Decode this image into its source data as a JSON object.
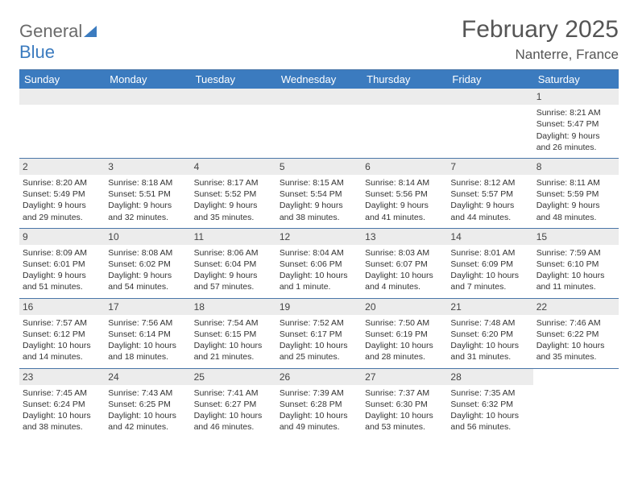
{
  "logo": {
    "word1": "General",
    "word2": "Blue"
  },
  "title": "February 2025",
  "location": "Nanterre, France",
  "colors": {
    "header_bg": "#3b7bbf",
    "header_text": "#ffffff",
    "daynum_bg": "#ececec",
    "rule": "#4a76a8",
    "logo_gray": "#6a6a6a",
    "logo_blue": "#3b7bbf",
    "text": "#333333",
    "title_text": "#555555"
  },
  "dayNames": [
    "Sunday",
    "Monday",
    "Tuesday",
    "Wednesday",
    "Thursday",
    "Friday",
    "Saturday"
  ],
  "weeks": [
    [
      {
        "empty": true
      },
      {
        "empty": true
      },
      {
        "empty": true
      },
      {
        "empty": true
      },
      {
        "empty": true
      },
      {
        "empty": true
      },
      {
        "day": "1",
        "sunrise": "8:21 AM",
        "sunset": "5:47 PM",
        "daylight": "9 hours and 26 minutes."
      }
    ],
    [
      {
        "day": "2",
        "sunrise": "8:20 AM",
        "sunset": "5:49 PM",
        "daylight": "9 hours and 29 minutes."
      },
      {
        "day": "3",
        "sunrise": "8:18 AM",
        "sunset": "5:51 PM",
        "daylight": "9 hours and 32 minutes."
      },
      {
        "day": "4",
        "sunrise": "8:17 AM",
        "sunset": "5:52 PM",
        "daylight": "9 hours and 35 minutes."
      },
      {
        "day": "5",
        "sunrise": "8:15 AM",
        "sunset": "5:54 PM",
        "daylight": "9 hours and 38 minutes."
      },
      {
        "day": "6",
        "sunrise": "8:14 AM",
        "sunset": "5:56 PM",
        "daylight": "9 hours and 41 minutes."
      },
      {
        "day": "7",
        "sunrise": "8:12 AM",
        "sunset": "5:57 PM",
        "daylight": "9 hours and 44 minutes."
      },
      {
        "day": "8",
        "sunrise": "8:11 AM",
        "sunset": "5:59 PM",
        "daylight": "9 hours and 48 minutes."
      }
    ],
    [
      {
        "day": "9",
        "sunrise": "8:09 AM",
        "sunset": "6:01 PM",
        "daylight": "9 hours and 51 minutes."
      },
      {
        "day": "10",
        "sunrise": "8:08 AM",
        "sunset": "6:02 PM",
        "daylight": "9 hours and 54 minutes."
      },
      {
        "day": "11",
        "sunrise": "8:06 AM",
        "sunset": "6:04 PM",
        "daylight": "9 hours and 57 minutes."
      },
      {
        "day": "12",
        "sunrise": "8:04 AM",
        "sunset": "6:06 PM",
        "daylight": "10 hours and 1 minute."
      },
      {
        "day": "13",
        "sunrise": "8:03 AM",
        "sunset": "6:07 PM",
        "daylight": "10 hours and 4 minutes."
      },
      {
        "day": "14",
        "sunrise": "8:01 AM",
        "sunset": "6:09 PM",
        "daylight": "10 hours and 7 minutes."
      },
      {
        "day": "15",
        "sunrise": "7:59 AM",
        "sunset": "6:10 PM",
        "daylight": "10 hours and 11 minutes."
      }
    ],
    [
      {
        "day": "16",
        "sunrise": "7:57 AM",
        "sunset": "6:12 PM",
        "daylight": "10 hours and 14 minutes."
      },
      {
        "day": "17",
        "sunrise": "7:56 AM",
        "sunset": "6:14 PM",
        "daylight": "10 hours and 18 minutes."
      },
      {
        "day": "18",
        "sunrise": "7:54 AM",
        "sunset": "6:15 PM",
        "daylight": "10 hours and 21 minutes."
      },
      {
        "day": "19",
        "sunrise": "7:52 AM",
        "sunset": "6:17 PM",
        "daylight": "10 hours and 25 minutes."
      },
      {
        "day": "20",
        "sunrise": "7:50 AM",
        "sunset": "6:19 PM",
        "daylight": "10 hours and 28 minutes."
      },
      {
        "day": "21",
        "sunrise": "7:48 AM",
        "sunset": "6:20 PM",
        "daylight": "10 hours and 31 minutes."
      },
      {
        "day": "22",
        "sunrise": "7:46 AM",
        "sunset": "6:22 PM",
        "daylight": "10 hours and 35 minutes."
      }
    ],
    [
      {
        "day": "23",
        "sunrise": "7:45 AM",
        "sunset": "6:24 PM",
        "daylight": "10 hours and 38 minutes."
      },
      {
        "day": "24",
        "sunrise": "7:43 AM",
        "sunset": "6:25 PM",
        "daylight": "10 hours and 42 minutes."
      },
      {
        "day": "25",
        "sunrise": "7:41 AM",
        "sunset": "6:27 PM",
        "daylight": "10 hours and 46 minutes."
      },
      {
        "day": "26",
        "sunrise": "7:39 AM",
        "sunset": "6:28 PM",
        "daylight": "10 hours and 49 minutes."
      },
      {
        "day": "27",
        "sunrise": "7:37 AM",
        "sunset": "6:30 PM",
        "daylight": "10 hours and 53 minutes."
      },
      {
        "day": "28",
        "sunrise": "7:35 AM",
        "sunset": "6:32 PM",
        "daylight": "10 hours and 56 minutes."
      },
      {
        "empty": true,
        "noBand": true
      }
    ]
  ],
  "labels": {
    "sunrise": "Sunrise:",
    "sunset": "Sunset:",
    "daylight": "Daylight:"
  }
}
